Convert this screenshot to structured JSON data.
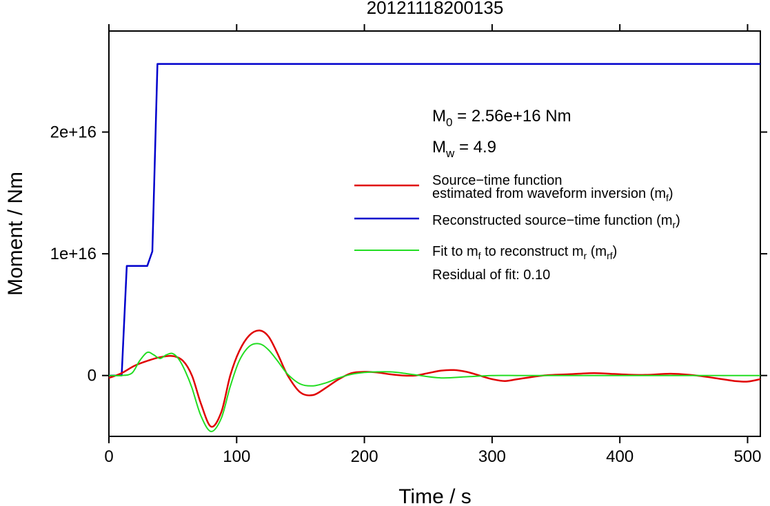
{
  "chart_data": {
    "type": "line",
    "title": "20121118200135",
    "xlabel": "Time / s",
    "ylabel": "Moment / Nm",
    "xlim": [
      0,
      510
    ],
    "ylim": [
      -5000000000000000.0,
      2.83e+16
    ],
    "x_ticks": [
      0,
      100,
      200,
      300,
      400,
      500
    ],
    "x_tick_labels": [
      "0",
      "100",
      "200",
      "300",
      "400",
      "500"
    ],
    "y_ticks": [
      0,
      1e+16,
      2e+16
    ],
    "y_tick_labels": [
      "0",
      "1e+16",
      "2e+16"
    ],
    "grid": false,
    "legend_position": "right",
    "annotations": {
      "m0_prefix": "M",
      "m0_sub": "0",
      "m0_value": " = 2.56e+16 Nm",
      "mw_prefix": "M",
      "mw_sub": "w",
      "mw_value": " = 4.9",
      "residual": "Residual of fit: 0.10"
    },
    "legend": [
      {
        "series": "red",
        "color": "#e00000",
        "line1": "Source−time function",
        "line2_text": "estimated from waveform inversion (m",
        "line2_sub": "f",
        "line2_end": ")"
      },
      {
        "series": "blue",
        "color": "#0000cc",
        "text": "Reconstructed source−time function (m",
        "sub": "r",
        "end": ")"
      },
      {
        "series": "green",
        "color": "#22dd22",
        "t1": "Fit to m",
        "s1": "f",
        "t2": " to reconstruct m",
        "s2": "r",
        "t3": " (m",
        "s3": "rf",
        "t4": ")"
      }
    ],
    "series": [
      {
        "key": "blue",
        "color": "#0000cc",
        "x": [
          0,
          10,
          14,
          30,
          34,
          38,
          510
        ],
        "y": [
          0,
          0,
          9000000000000000.0,
          9000000000000000.0,
          1.02e+16,
          2.56e+16,
          2.56e+16
        ]
      },
      {
        "key": "red",
        "color": "#e00000",
        "x": [
          0,
          10,
          20,
          30,
          40,
          50,
          58,
          65,
          72,
          80,
          88,
          95,
          102,
          110,
          118,
          125,
          132,
          140,
          150,
          160,
          170,
          180,
          190,
          200,
          210,
          220,
          230,
          240,
          250,
          260,
          270,
          280,
          290,
          300,
          310,
          320,
          340,
          360,
          380,
          400,
          420,
          440,
          460,
          480,
          490,
          500,
          510
        ],
        "y": [
          -200000000000000.0,
          200000000000000.0,
          800000000000000.0,
          1200000000000000.0,
          1500000000000000.0,
          1600000000000000.0,
          1200000000000000.0,
          0.0,
          -2300000000000000.0,
          -4200000000000000.0,
          -3000000000000000.0,
          0.0,
          2000000000000000.0,
          3300000000000000.0,
          3700000000000000.0,
          3200000000000000.0,
          1800000000000000.0,
          0.0,
          -1400000000000000.0,
          -1600000000000000.0,
          -1000000000000000.0,
          -300000000000000.0,
          200000000000000.0,
          300000000000000.0,
          250000000000000.0,
          100000000000000.0,
          0.0,
          0.0,
          200000000000000.0,
          400000000000000.0,
          450000000000000.0,
          300000000000000.0,
          0.0,
          -300000000000000.0,
          -450000000000000.0,
          -300000000000000.0,
          0.0,
          100000000000000.0,
          200000000000000.0,
          100000000000000.0,
          50000000000000.0,
          150000000000000.0,
          0.0,
          -300000000000000.0,
          -450000000000000.0,
          -500000000000000.0,
          -300000000000000.0
        ]
      },
      {
        "key": "green",
        "color": "#22dd22",
        "x": [
          0,
          10,
          18,
          24,
          30,
          35,
          40,
          45,
          50,
          55,
          60,
          65,
          72,
          80,
          88,
          95,
          102,
          110,
          118,
          125,
          132,
          140,
          150,
          160,
          170,
          180,
          190,
          200,
          210,
          220,
          230,
          240,
          260,
          280,
          300,
          320,
          340,
          360,
          400,
          450,
          510
        ],
        "y": [
          0,
          0,
          200000000000000.0,
          1200000000000000.0,
          1900000000000000.0,
          1700000000000000.0,
          1400000000000000.0,
          1700000000000000.0,
          1800000000000000.0,
          1300000000000000.0,
          300000000000000.0,
          -1000000000000000.0,
          -3300000000000000.0,
          -4600000000000000.0,
          -3500000000000000.0,
          -900000000000000.0,
          1200000000000000.0,
          2400000000000000.0,
          2600000000000000.0,
          2100000000000000.0,
          1200000000000000.0,
          100000000000000.0,
          -700000000000000.0,
          -850000000000000.0,
          -600000000000000.0,
          -200000000000000.0,
          100000000000000.0,
          250000000000000.0,
          300000000000000.0,
          300000000000000.0,
          200000000000000.0,
          50000000000000.0,
          -200000000000000.0,
          -100000000000000.0,
          0.0,
          0.0,
          0.0,
          0.0,
          0.0,
          0.0,
          0.0
        ]
      }
    ]
  }
}
